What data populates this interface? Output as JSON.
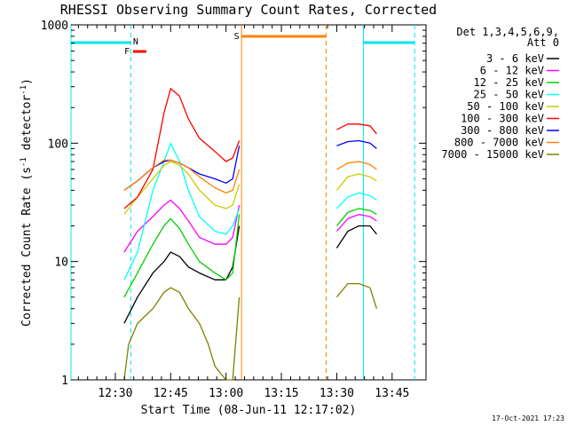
{
  "chart_data": {
    "type": "line",
    "title": "RHESSI Observing Summary Count Rates, Corrected",
    "xlabel": "Start Time (08-Jun-11 12:17:02)",
    "ylabel_main": "Corrected Count Rate (s",
    "ylabel_sup1": "-1",
    "ylabel_mid": " detector",
    "ylabel_sup2": "-1",
    "ylabel_end": ")",
    "yscale": "log",
    "ylim": [
      1,
      1000
    ],
    "xlim_minutes": [
      12.3,
      13.903
    ],
    "x_ticks": [
      "12:30",
      "12:45",
      "13:00",
      "13:15",
      "13:30",
      "13:45"
    ],
    "y_ticks": [
      "1",
      "10",
      "100",
      "1000"
    ],
    "legend": {
      "placement": "top-right, outside plot",
      "header1": "Det 1,3,4,5,6,9,",
      "header2": "Att 0"
    },
    "footer_timestamp": "17-Oct-2021 17:23",
    "flags": {
      "night_label": "N",
      "flare_label": "F",
      "saa_label": "S",
      "colors": {
        "night": "#00e5f0",
        "flare": "#ff0000",
        "saa": "#ff8000"
      }
    },
    "series": [
      {
        "name": "3 - 6 keV",
        "color": "#000000",
        "seg1": [
          [
            12.54,
            3
          ],
          [
            12.6,
            5
          ],
          [
            12.67,
            8
          ],
          [
            12.72,
            10
          ],
          [
            12.75,
            12
          ],
          [
            12.79,
            11
          ],
          [
            12.83,
            9
          ],
          [
            12.88,
            8
          ],
          [
            12.95,
            7
          ],
          [
            13.0,
            7
          ],
          [
            13.03,
            9
          ],
          [
            13.06,
            20
          ]
        ],
        "seg2": [
          [
            13.5,
            13
          ],
          [
            13.55,
            18
          ],
          [
            13.6,
            20
          ],
          [
            13.65,
            20
          ],
          [
            13.68,
            17
          ]
        ]
      },
      {
        "name": "6 - 12 keV",
        "color": "#ff00ff",
        "seg1": [
          [
            12.54,
            12
          ],
          [
            12.6,
            18
          ],
          [
            12.67,
            24
          ],
          [
            12.72,
            30
          ],
          [
            12.75,
            33
          ],
          [
            12.79,
            28
          ],
          [
            12.83,
            22
          ],
          [
            12.88,
            16
          ],
          [
            12.95,
            14
          ],
          [
            13.0,
            14
          ],
          [
            13.03,
            16
          ],
          [
            13.06,
            30
          ]
        ],
        "seg2": [
          [
            13.5,
            18
          ],
          [
            13.55,
            23
          ],
          [
            13.6,
            25
          ],
          [
            13.65,
            24
          ],
          [
            13.68,
            22
          ]
        ]
      },
      {
        "name": "12 - 25 keV",
        "color": "#00d000",
        "seg1": [
          [
            12.54,
            5
          ],
          [
            12.6,
            8
          ],
          [
            12.67,
            14
          ],
          [
            12.72,
            20
          ],
          [
            12.75,
            23
          ],
          [
            12.79,
            19
          ],
          [
            12.83,
            14
          ],
          [
            12.88,
            10
          ],
          [
            12.95,
            8
          ],
          [
            13.0,
            7
          ],
          [
            13.03,
            8
          ],
          [
            13.06,
            25
          ]
        ],
        "seg2": [
          [
            13.5,
            20
          ],
          [
            13.55,
            26
          ],
          [
            13.6,
            28
          ],
          [
            13.65,
            27
          ],
          [
            13.68,
            25
          ]
        ]
      },
      {
        "name": "25 - 50 keV",
        "color": "#00ffff",
        "seg1": [
          [
            12.54,
            7
          ],
          [
            12.6,
            12
          ],
          [
            12.67,
            40
          ],
          [
            12.72,
            70
          ],
          [
            12.75,
            100
          ],
          [
            12.79,
            70
          ],
          [
            12.83,
            40
          ],
          [
            12.88,
            24
          ],
          [
            12.95,
            18
          ],
          [
            13.0,
            17
          ],
          [
            13.03,
            20
          ],
          [
            13.06,
            28
          ]
        ],
        "seg2": [
          [
            13.5,
            28
          ],
          [
            13.55,
            35
          ],
          [
            13.6,
            38
          ],
          [
            13.65,
            36
          ],
          [
            13.68,
            33
          ]
        ]
      },
      {
        "name": "50 - 100 keV",
        "color": "#cccc00",
        "seg1": [
          [
            12.54,
            25
          ],
          [
            12.6,
            35
          ],
          [
            12.67,
            50
          ],
          [
            12.72,
            65
          ],
          [
            12.75,
            70
          ],
          [
            12.79,
            65
          ],
          [
            12.83,
            55
          ],
          [
            12.88,
            40
          ],
          [
            12.95,
            30
          ],
          [
            13.0,
            28
          ],
          [
            13.03,
            30
          ],
          [
            13.06,
            45
          ]
        ],
        "seg2": [
          [
            13.5,
            40
          ],
          [
            13.55,
            52
          ],
          [
            13.6,
            55
          ],
          [
            13.65,
            52
          ],
          [
            13.68,
            48
          ]
        ]
      },
      {
        "name": "100 - 300 keV",
        "color": "#ff0000",
        "seg1": [
          [
            12.54,
            28
          ],
          [
            12.6,
            35
          ],
          [
            12.67,
            60
          ],
          [
            12.72,
            180
          ],
          [
            12.75,
            290
          ],
          [
            12.79,
            250
          ],
          [
            12.83,
            160
          ],
          [
            12.88,
            110
          ],
          [
            12.95,
            85
          ],
          [
            13.0,
            70
          ],
          [
            13.03,
            75
          ],
          [
            13.06,
            105
          ]
        ],
        "seg2": [
          [
            13.5,
            130
          ],
          [
            13.55,
            145
          ],
          [
            13.6,
            145
          ],
          [
            13.65,
            140
          ],
          [
            13.68,
            120
          ]
        ]
      },
      {
        "name": "300 - 800 keV",
        "color": "#0000ff",
        "seg1": [
          [
            12.54,
            40
          ],
          [
            12.6,
            48
          ],
          [
            12.67,
            62
          ],
          [
            12.72,
            70
          ],
          [
            12.75,
            72
          ],
          [
            12.79,
            68
          ],
          [
            12.83,
            62
          ],
          [
            12.88,
            55
          ],
          [
            12.95,
            50
          ],
          [
            13.0,
            46
          ],
          [
            13.03,
            50
          ],
          [
            13.06,
            95
          ]
        ],
        "seg2": [
          [
            13.5,
            95
          ],
          [
            13.55,
            103
          ],
          [
            13.6,
            105
          ],
          [
            13.65,
            100
          ],
          [
            13.68,
            90
          ]
        ]
      },
      {
        "name": "800 - 7000 keV",
        "color": "#ff8000",
        "seg1": [
          [
            12.54,
            40
          ],
          [
            12.6,
            48
          ],
          [
            12.67,
            62
          ],
          [
            12.72,
            72
          ],
          [
            12.75,
            72
          ],
          [
            12.79,
            68
          ],
          [
            12.83,
            62
          ],
          [
            12.88,
            52
          ],
          [
            12.95,
            42
          ],
          [
            13.0,
            38
          ],
          [
            13.03,
            40
          ],
          [
            13.06,
            60
          ]
        ],
        "seg2": [
          [
            13.5,
            60
          ],
          [
            13.55,
            68
          ],
          [
            13.6,
            70
          ],
          [
            13.65,
            66
          ],
          [
            13.68,
            60
          ]
        ]
      },
      {
        "name": "7000 - 15000 keV",
        "color": "#808000",
        "seg1": [
          [
            12.54,
            1
          ],
          [
            12.56,
            2
          ],
          [
            12.6,
            3
          ],
          [
            12.67,
            4
          ],
          [
            12.72,
            5.5
          ],
          [
            12.75,
            6
          ],
          [
            12.79,
            5.5
          ],
          [
            12.83,
            4
          ],
          [
            12.88,
            3
          ],
          [
            12.92,
            2
          ],
          [
            12.95,
            1.3
          ],
          [
            13.0,
            1
          ],
          [
            13.03,
            1
          ],
          [
            13.06,
            5
          ]
        ],
        "seg2": [
          [
            13.5,
            5
          ],
          [
            13.55,
            6.5
          ],
          [
            13.6,
            6.5
          ],
          [
            13.65,
            6
          ],
          [
            13.68,
            4
          ]
        ]
      }
    ]
  }
}
